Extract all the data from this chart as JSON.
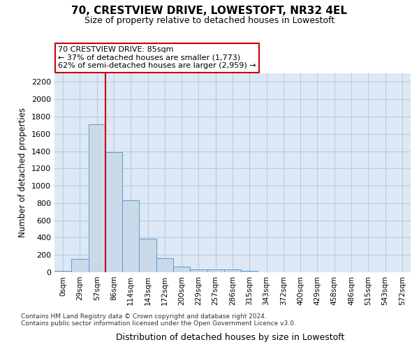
{
  "title": "70, CRESTVIEW DRIVE, LOWESTOFT, NR32 4EL",
  "subtitle": "Size of property relative to detached houses in Lowestoft",
  "xlabel": "Distribution of detached houses by size in Lowestoft",
  "ylabel": "Number of detached properties",
  "bar_values": [
    20,
    155,
    1710,
    1390,
    835,
    385,
    165,
    65,
    35,
    30,
    30,
    20,
    0,
    0,
    0,
    0,
    0,
    0,
    0,
    0,
    0
  ],
  "bin_labels": [
    "0sqm",
    "29sqm",
    "57sqm",
    "86sqm",
    "114sqm",
    "143sqm",
    "172sqm",
    "200sqm",
    "229sqm",
    "257sqm",
    "286sqm",
    "315sqm",
    "343sqm",
    "372sqm",
    "400sqm",
    "429sqm",
    "458sqm",
    "486sqm",
    "515sqm",
    "543sqm",
    "572sqm"
  ],
  "bar_color": "#c9d9e8",
  "bar_edge_color": "#5b9bd5",
  "grid_color": "#c0c8d8",
  "background_color": "#dce8f5",
  "vline_color": "#cc0000",
  "vline_x": 2.5,
  "annotation_text": "70 CRESTVIEW DRIVE: 85sqm\n← 37% of detached houses are smaller (1,773)\n62% of semi-detached houses are larger (2,959) →",
  "annotation_box_color": "#ffffff",
  "annotation_box_edge": "#cc0000",
  "ylim": [
    0,
    2300
  ],
  "yticks": [
    0,
    200,
    400,
    600,
    800,
    1000,
    1200,
    1400,
    1600,
    1800,
    2000,
    2200
  ],
  "footer_line1": "Contains HM Land Registry data © Crown copyright and database right 2024.",
  "footer_line2": "Contains public sector information licensed under the Open Government Licence v3.0."
}
